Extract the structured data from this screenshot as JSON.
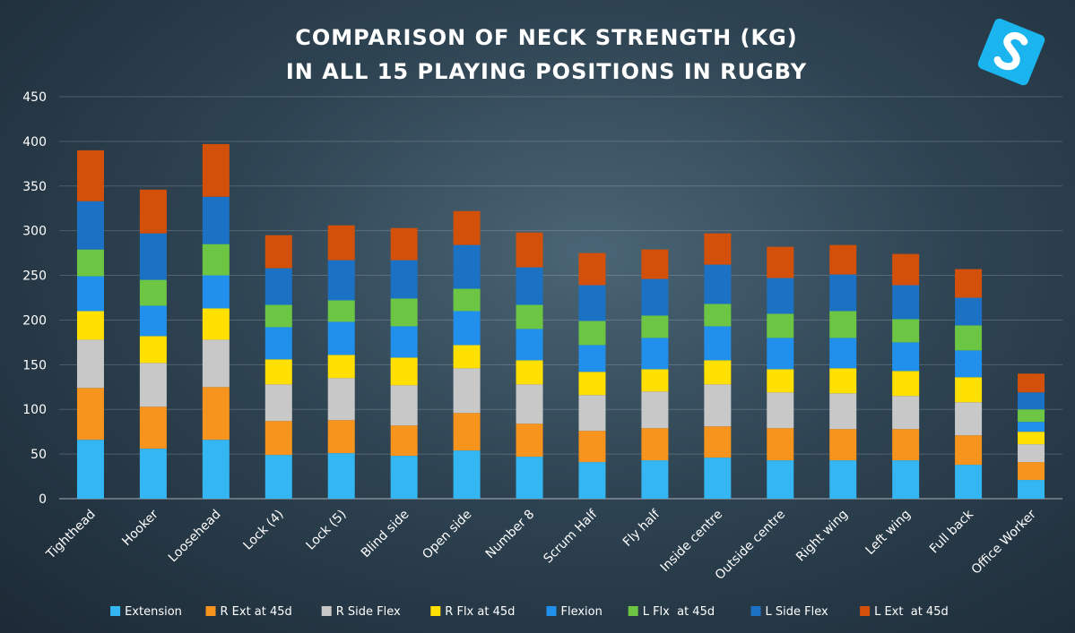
{
  "chart_data": {
    "type": "bar",
    "stacked": true,
    "title_lines": [
      "COMPARISON OF NECK STRENGTH (KG)",
      "IN ALL 15 PLAYING POSITIONS IN RUGBY"
    ],
    "ylim": [
      0,
      450
    ],
    "yticks": [
      0,
      50,
      100,
      150,
      200,
      250,
      300,
      350,
      400,
      450
    ],
    "grid": true,
    "legend_position": "bottom",
    "categories": [
      "Tighthead",
      "Hooker",
      "Loosehead",
      "Lock (4)",
      "Lock (5)",
      "Blind side",
      "Open side",
      "Number 8",
      "Scrum Half",
      "Fly half",
      "Inside centre",
      "Outside centre",
      "Right wing",
      "Left wing",
      "Full back",
      "Office Worker"
    ],
    "series": [
      {
        "name": "Extension",
        "color": "#33b6f2",
        "values": [
          66,
          56,
          66,
          49,
          51,
          48,
          54,
          47,
          41,
          43,
          46,
          43,
          43,
          43,
          38,
          21
        ]
      },
      {
        "name": "R Ext at 45d",
        "color": "#f7941d",
        "values": [
          58,
          47,
          59,
          38,
          37,
          34,
          42,
          37,
          35,
          36,
          35,
          36,
          35,
          35,
          33,
          20
        ]
      },
      {
        "name": "R Side Flex",
        "color": "#c8c8c8",
        "values": [
          54,
          49,
          53,
          41,
          47,
          45,
          50,
          44,
          40,
          41,
          47,
          40,
          40,
          37,
          37,
          20
        ]
      },
      {
        "name": "R Flx at 45d",
        "color": "#ffe000",
        "values": [
          32,
          30,
          35,
          28,
          26,
          31,
          26,
          27,
          26,
          25,
          27,
          26,
          28,
          28,
          28,
          14
        ]
      },
      {
        "name": "Flexion",
        "color": "#2090ec",
        "values": [
          39,
          34,
          37,
          36,
          37,
          35,
          38,
          35,
          30,
          35,
          38,
          35,
          34,
          32,
          30,
          11
        ]
      },
      {
        "name": "L Flx  at 45d",
        "color": "#6cc644",
        "values": [
          30,
          29,
          35,
          25,
          24,
          31,
          25,
          27,
          27,
          25,
          25,
          27,
          30,
          26,
          28,
          14
        ]
      },
      {
        "name": "L Side Flex",
        "color": "#1b72c4",
        "values": [
          54,
          52,
          53,
          41,
          45,
          43,
          49,
          42,
          40,
          41,
          44,
          40,
          41,
          38,
          31,
          19
        ]
      },
      {
        "name": "L Ext  at 45d",
        "color": "#d3500a",
        "values": [
          57,
          49,
          59,
          37,
          39,
          36,
          38,
          39,
          36,
          33,
          35,
          35,
          33,
          35,
          32,
          21
        ]
      }
    ]
  },
  "logo": {
    "name": "s-logo",
    "bg_color": "#1ab4ee",
    "glyph": "S"
  }
}
